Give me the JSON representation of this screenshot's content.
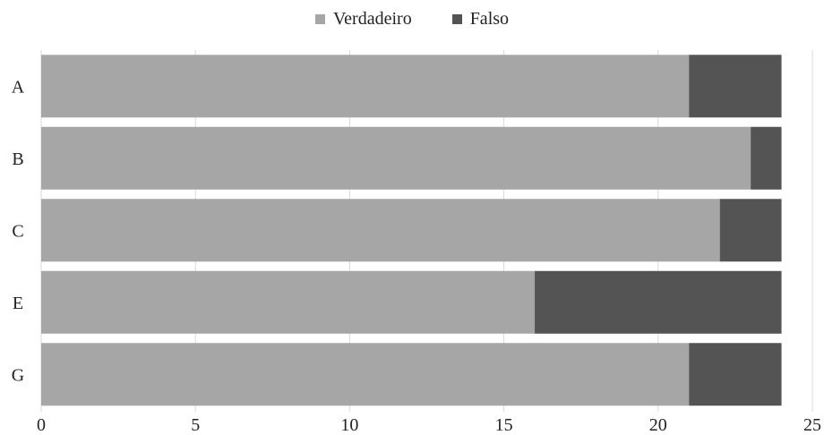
{
  "chart_data": {
    "type": "bar",
    "orientation": "horizontal",
    "stacked": true,
    "categories": [
      "A",
      "B",
      "C",
      "E",
      "G"
    ],
    "series": [
      {
        "name": "Verdadeiro",
        "values": [
          21,
          23,
          22,
          16,
          21
        ],
        "color": "#a6a6a6"
      },
      {
        "name": "Falso",
        "values": [
          3,
          1,
          2,
          8,
          3
        ],
        "color": "#545454"
      }
    ],
    "xlim": [
      0,
      25
    ],
    "xticks": [
      "0",
      "5",
      "10",
      "15",
      "20",
      "25"
    ],
    "grid": "vertical",
    "legend": "top-center"
  }
}
